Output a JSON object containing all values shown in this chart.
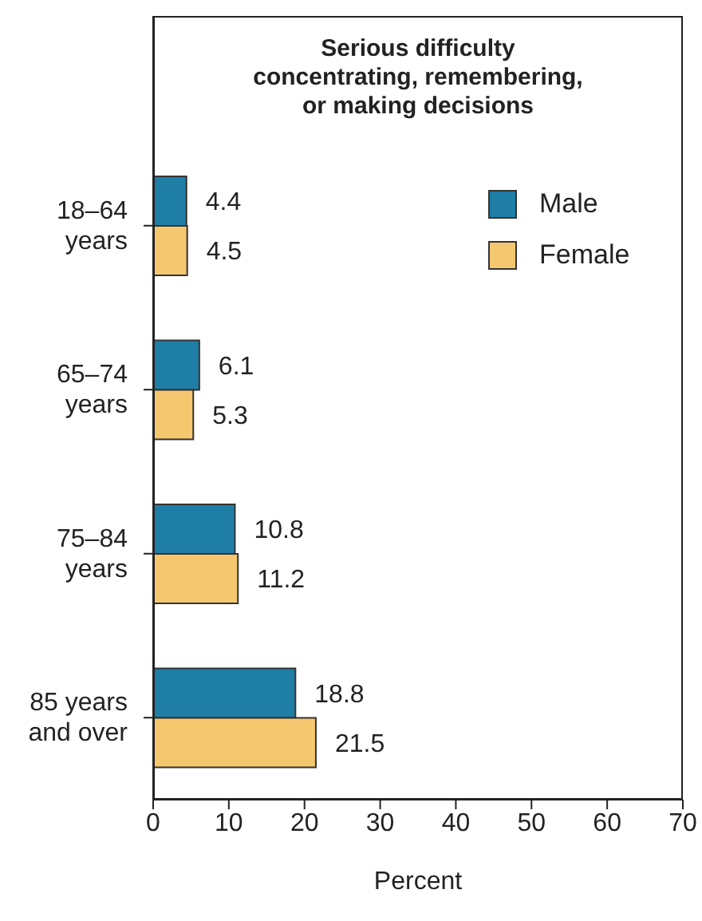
{
  "chart_data": {
    "type": "bar",
    "orientation": "horizontal",
    "title": "Serious difficulty concentrating, remembering, or making decisions",
    "xlabel": "Percent",
    "categories": [
      "18–64 years",
      "65–74 years",
      "75–84 years",
      "85 years and over"
    ],
    "series": [
      {
        "name": "Male",
        "color": "#1f7ea6",
        "values": [
          4.4,
          6.1,
          10.8,
          18.8
        ]
      },
      {
        "name": "Female",
        "color": "#f5c870",
        "values": [
          4.5,
          5.3,
          11.2,
          21.5
        ]
      }
    ],
    "xlim": [
      0,
      70
    ],
    "xticks": [
      0,
      10,
      20,
      30,
      40,
      50,
      60,
      70
    ],
    "grid": false,
    "legend": "top right",
    "data_labels": true
  }
}
